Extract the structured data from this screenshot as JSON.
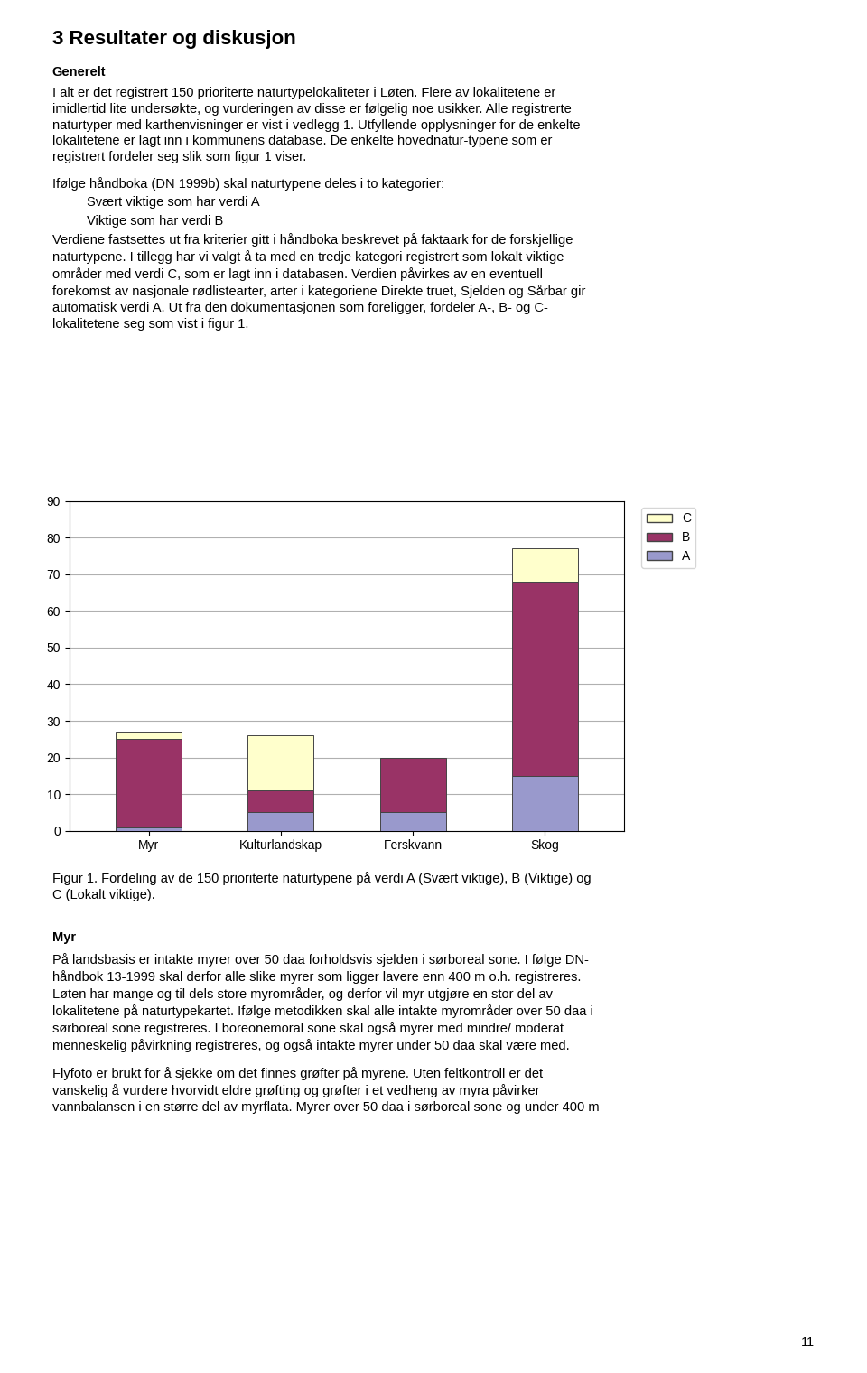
{
  "chart_data": {
    "type": "bar",
    "stacked": true,
    "title": "3 Resultater og diskusjon",
    "categories": [
      "Myr",
      "Kulturlandskap",
      "Ferskvann",
      "Skog"
    ],
    "series": [
      {
        "name": "A",
        "color": "#9999CC",
        "values": [
          1,
          5,
          5,
          15
        ]
      },
      {
        "name": "B",
        "color": "#993366",
        "values": [
          24,
          6,
          15,
          53
        ]
      },
      {
        "name": "C",
        "color": "#FFFFCC",
        "values": [
          2,
          15,
          0,
          9
        ]
      }
    ],
    "ylim": [
      0,
      90
    ],
    "yticks": [
      0,
      10,
      20,
      30,
      40,
      50,
      60,
      70,
      80,
      90
    ],
    "grid": true,
    "legend": "right",
    "annotations": [
      "Generelt",
      "I alt er det registrert 150 prioriterte naturtypelokaliteter i Løten. Flere av lokalitetene er\nimidlertid lite undersøkte, og vurderingen av disse er følgelig noe usikker. Alle registrerte\nnaturtyper med karthenvisninger er vist i vedlegg 1. Utfyllende opplysninger for de enkelte\nlokalitetene er lagt inn i kommunens database. De enkelte hovednatur­typene som er\nregistrert fordeler seg slik som figur 1 viser.",
      "Ifølge håndboka (DN 1999b) skal naturtypene deles i to kategorier:",
      "Svært viktige som har verdi A",
      "Viktige som har verdi B",
      "Verdiene fastsettes ut fra kriterier gitt i håndboka beskrevet på faktaark for de forskjellige\nnaturtypene. I tillegg har vi valgt å ta med en tredje kategori registrert som lokalt viktige\nområder med verdi C, som er lagt inn i databasen. Verdien påvirkes av en eventuell\nforekomst av nasjonale rødlistearter, arter i kategoriene Direkte truet, Sjelden og Sårbar gir\nautomatisk verdi A. Ut fra den dokumentasjonen som foreligger, fordeler A-, B- og C-\nlokalitetene seg som vist i figur 1.",
      "Figur 1. Fordeling av de 150 prioriterte naturtypene på verdi A (Svært viktige), B (Viktige) og\nC (Lokalt viktige).",
      "Myr",
      "På landsbasis er intakte myrer over 50 daa forholdsvis sjelden i sørboreal sone. I følge DN-\nhåndbok 13-1999 skal derfor alle slike myrer som ligger lavere enn 400 m o.h. registreres.\nLøten har mange og til dels store myrområder, og derfor vil myr utgjøre en stor del av\nlokalitetene på naturtypekartet. Ifølge metodikken skal alle intakte myrområder over 50 daa i\nsørboreal sone registreres. I boreonemoral sone skal også myrer med mindre/ moderat\nmenneskelig påvirkning registreres, og også intakte myrer under 50 daa skal være med.",
      "Flyfoto er brukt for å sjekke om det finnes grøfter på myrene. Uten feltkontroll er det\nvanskelig å vurdere hvorvidt eldre grøfting og grøfter i et vedheng av myra påvirker\nvannbalansen i en større del av myrflata. Myrer over 50 daa i sørboreal sone og under 400 m",
      "11"
    ]
  }
}
